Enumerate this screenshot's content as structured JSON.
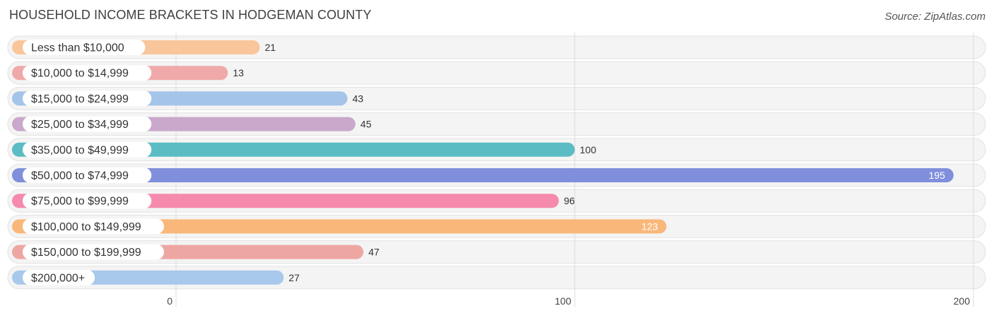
{
  "header": {
    "title": "HOUSEHOLD INCOME BRACKETS IN HODGEMAN COUNTY",
    "source": "Source: ZipAtlas.com"
  },
  "chart_data": {
    "type": "bar",
    "orientation": "horizontal",
    "title": "HOUSEHOLD INCOME BRACKETS IN HODGEMAN COUNTY",
    "xlabel": "",
    "ylabel": "",
    "xlim": [
      0,
      200
    ],
    "ticks": [
      0,
      100,
      200
    ],
    "tick_labels": [
      "0",
      "100",
      "200"
    ],
    "categories": [
      "Less than $10,000",
      "$10,000 to $14,999",
      "$15,000 to $24,999",
      "$25,000 to $34,999",
      "$35,000 to $49,999",
      "$50,000 to $74,999",
      "$75,000 to $99,999",
      "$100,000 to $149,999",
      "$150,000 to $199,999",
      "$200,000+"
    ],
    "values": [
      21,
      13,
      43,
      45,
      100,
      195,
      96,
      123,
      47,
      27
    ],
    "value_labels": [
      "21",
      "13",
      "43",
      "45",
      "100",
      "195",
      "96",
      "123",
      "47",
      "27"
    ],
    "colors": [
      "#f9c59b",
      "#f0a9a9",
      "#a4c4e9",
      "#c9a8cc",
      "#5bbcc3",
      "#7f8fdc",
      "#f58aac",
      "#f9b87a",
      "#eea6a3",
      "#a8c8ec"
    ],
    "value_inside": [
      false,
      false,
      false,
      false,
      false,
      true,
      false,
      true,
      false,
      false
    ],
    "grid": true
  }
}
